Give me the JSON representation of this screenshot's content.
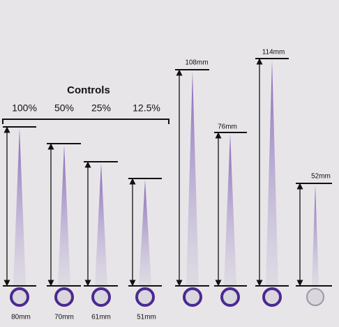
{
  "header": {
    "title": "Controls"
  },
  "concentrations": [
    "100%",
    "50%",
    "25%",
    "12.5%"
  ],
  "streaks": [
    {
      "label": "80mm"
    },
    {
      "label": "70mm"
    },
    {
      "label": "61mm"
    },
    {
      "label": "51mm"
    },
    {
      "label": "108mm"
    },
    {
      "label": "76mm"
    },
    {
      "label": "114mm"
    },
    {
      "label": "52mm"
    }
  ]
}
